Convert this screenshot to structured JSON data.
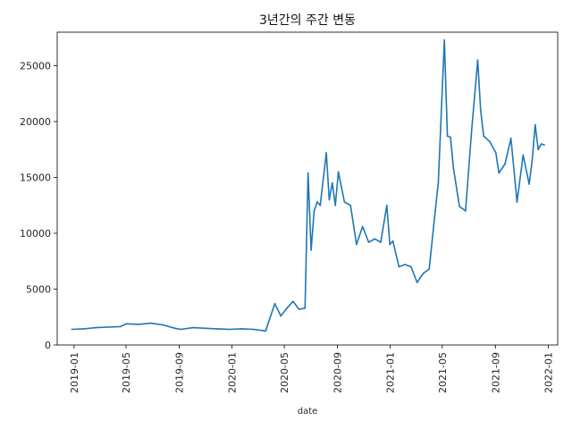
{
  "chart_data": {
    "type": "line",
    "title": "3년간의 주간 변동",
    "xlabel": "date",
    "ylabel": "",
    "xlim": [
      "2018-11-23",
      "2022-01-23"
    ],
    "ylim": [
      0,
      28000
    ],
    "grid": false,
    "legend": "none",
    "line_color": "#1f77b4",
    "x_ticks": [
      "2019-01",
      "2019-05",
      "2019-09",
      "2020-01",
      "2020-05",
      "2020-09",
      "2021-01",
      "2021-05",
      "2021-09",
      "2022-01"
    ],
    "y_ticks": [
      "0",
      "5000",
      "10000",
      "15000",
      "20000",
      "25000"
    ],
    "series": [
      {
        "x": [
          "2018-12-27",
          "2019-01-24",
          "2019-02-21",
          "2019-03-21",
          "2019-04-18",
          "2019-05-02",
          "2019-05-30",
          "2019-06-27",
          "2019-07-25",
          "2019-08-22",
          "2019-09-05",
          "2019-10-03",
          "2019-10-31",
          "2019-11-28",
          "2019-12-26",
          "2020-01-23",
          "2020-02-20",
          "2020-03-12",
          "2020-03-19",
          "2020-03-26",
          "2020-04-09",
          "2020-04-23",
          "2020-05-07",
          "2020-05-21",
          "2020-06-04",
          "2020-06-18",
          "2020-06-25",
          "2020-07-02",
          "2020-07-09",
          "2020-07-16",
          "2020-07-23",
          "2020-08-06",
          "2020-08-13",
          "2020-08-20",
          "2020-08-27",
          "2020-09-03",
          "2020-09-17",
          "2020-10-01",
          "2020-10-15",
          "2020-10-29",
          "2020-11-12",
          "2020-11-26",
          "2020-12-10",
          "2020-12-24",
          "2020-12-31",
          "2021-01-07",
          "2021-01-21",
          "2021-02-04",
          "2021-02-18",
          "2021-03-04",
          "2021-03-18",
          "2021-04-01",
          "2021-04-15",
          "2021-04-22",
          "2021-05-06",
          "2021-05-13",
          "2021-05-20",
          "2021-05-27",
          "2021-06-10",
          "2021-06-24",
          "2021-07-08",
          "2021-07-22",
          "2021-07-29",
          "2021-08-05",
          "2021-08-19",
          "2021-09-02",
          "2021-09-09",
          "2021-09-23",
          "2021-10-07",
          "2021-10-21",
          "2021-11-04",
          "2021-11-18",
          "2021-11-25",
          "2021-12-02",
          "2021-12-09",
          "2021-12-16",
          "2021-12-23"
        ],
        "values": [
          1400,
          1450,
          1550,
          1600,
          1650,
          1900,
          1850,
          1950,
          1800,
          1500,
          1400,
          1550,
          1500,
          1450,
          1400,
          1450,
          1400,
          1300,
          1250,
          2100,
          3700,
          2600,
          3300,
          3900,
          3200,
          3300,
          15400,
          8500,
          12000,
          12800,
          12500,
          17200,
          13000,
          14500,
          12500,
          15500,
          12800,
          12500,
          9000,
          10600,
          9200,
          9500,
          9200,
          12500,
          9000,
          9300,
          7000,
          7200,
          7000,
          5600,
          6400,
          6800,
          12000,
          14500,
          27300,
          18700,
          18600,
          15800,
          12400,
          12000,
          19200,
          25500,
          21000,
          18700,
          18200,
          17200,
          15400,
          16200,
          18500,
          12800,
          17000,
          14400,
          16500,
          19700,
          17500,
          18000,
          17900
        ]
      }
    ]
  }
}
